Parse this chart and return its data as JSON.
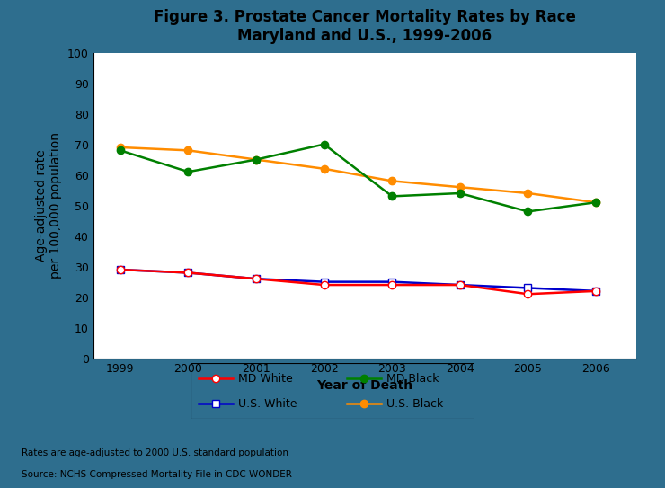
{
  "title": "Figure 3. Prostate Cancer Mortality Rates by Race\nMaryland and U.S., 1999-2006",
  "xlabel": "Year of Death",
  "ylabel": "Age-adjusted rate\nper 100,000 population",
  "years": [
    1999,
    2000,
    2001,
    2002,
    2003,
    2004,
    2005,
    2006
  ],
  "md_white": [
    29,
    28,
    26,
    24,
    24,
    24,
    21,
    22
  ],
  "us_white": [
    29,
    28,
    26,
    25,
    25,
    24,
    23,
    22
  ],
  "md_black": [
    68,
    61,
    65,
    70,
    53,
    54,
    48,
    51
  ],
  "us_black": [
    69,
    68,
    65,
    62,
    58,
    56,
    54,
    51
  ],
  "md_white_color": "#FF0000",
  "md_black_color": "#008000",
  "us_white_color": "#0000CC",
  "us_black_color": "#FF8C00",
  "ylim": [
    0,
    100
  ],
  "yticks": [
    0,
    10,
    20,
    30,
    40,
    50,
    60,
    70,
    80,
    90,
    100
  ],
  "chart_bg": "#FFFFFF",
  "outer_bg": "#2E6E8E",
  "white_panel_color": "#FFFFFF",
  "footer_text1": "Rates are age-adjusted to 2000 U.S. standard population",
  "footer_text2": "Source: NCHS Compressed Mortality File in CDC WONDER",
  "title_fontsize": 12,
  "axis_label_fontsize": 10,
  "tick_fontsize": 9,
  "legend_fontsize": 9
}
